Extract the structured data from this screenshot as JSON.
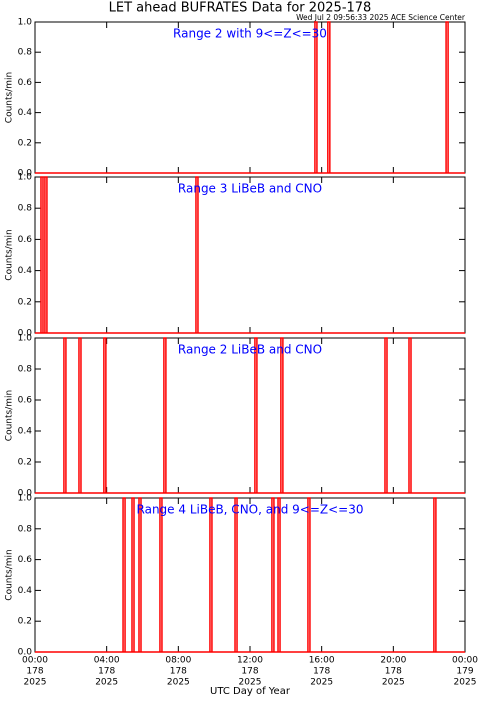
{
  "title": "LET ahead BUFRATES Data for 2025-178",
  "timestamp": "Wed Jul  2 09:56:33 2025 ACE Science Center",
  "x_axis": {
    "label": "UTC Day of Year",
    "xlim": [
      0,
      24
    ],
    "xticks": [
      {
        "value": 0,
        "label": "00:00"
      },
      {
        "value": 4,
        "label": "04:00"
      },
      {
        "value": 8,
        "label": "08:00"
      },
      {
        "value": 12,
        "label": "12:00"
      },
      {
        "value": 16,
        "label": "16:00"
      },
      {
        "value": 20,
        "label": "20:00"
      },
      {
        "value": 24,
        "label": "00:00"
      }
    ],
    "day_labels": [
      "178",
      "178",
      "178",
      "178",
      "178",
      "178",
      "179"
    ],
    "year_labels": [
      "2025",
      "2025",
      "2025",
      "2025",
      "2025",
      "2025",
      "2025"
    ]
  },
  "chart_data": [
    {
      "type": "line",
      "annotation": "Range 2 with 9<=Z<=30",
      "ylabel": "Counts/min",
      "color": "#ff0000",
      "ylim": [
        0,
        1
      ],
      "yticks": [
        {
          "value": 0,
          "label": "0.0"
        },
        {
          "value": 0.2,
          "label": "0.2"
        },
        {
          "value": 0.4,
          "label": "0.4"
        },
        {
          "value": 0.6,
          "label": "0.6"
        },
        {
          "value": 0.8,
          "label": "0.8"
        },
        {
          "value": 1,
          "label": "1.0"
        }
      ],
      "x": [
        15.68,
        16.4,
        23.0
      ],
      "values": [
        1,
        1,
        1
      ]
    },
    {
      "type": "line",
      "annotation": "Range 3 LiBeB and CNO",
      "ylabel": "Counts/min",
      "color": "#ff0000",
      "ylim": [
        0,
        1
      ],
      "yticks": [
        {
          "value": 0,
          "label": "0.0"
        },
        {
          "value": 0.2,
          "label": "0.2"
        },
        {
          "value": 0.4,
          "label": "0.4"
        },
        {
          "value": 0.6,
          "label": "0.6"
        },
        {
          "value": 0.8,
          "label": "0.8"
        },
        {
          "value": 1,
          "label": "1.0"
        }
      ],
      "x": [
        0.39,
        0.61,
        9.04
      ],
      "values": [
        1,
        1,
        1
      ]
    },
    {
      "type": "line",
      "annotation": "Range 2 LiBeB and CNO",
      "ylabel": "Counts/min",
      "color": "#ff0000",
      "ylim": [
        0,
        1
      ],
      "yticks": [
        {
          "value": 0,
          "label": "0.0"
        },
        {
          "value": 0.2,
          "label": "0.2"
        },
        {
          "value": 0.4,
          "label": "0.4"
        },
        {
          "value": 0.6,
          "label": "0.6"
        },
        {
          "value": 0.8,
          "label": "0.8"
        },
        {
          "value": 1,
          "label": "1.0"
        }
      ],
      "x": [
        1.67,
        2.51,
        3.9,
        7.25,
        12.33,
        13.78,
        19.59,
        20.93
      ],
      "values": [
        1,
        1,
        1,
        1,
        1,
        1,
        1,
        1
      ]
    },
    {
      "type": "line",
      "annotation": "Range 4 LiBeB, CNO, and 9<=Z<=30",
      "ylabel": "Counts/min",
      "color": "#ff0000",
      "ylim": [
        0,
        1
      ],
      "yticks": [
        {
          "value": 0,
          "label": "0.0"
        },
        {
          "value": 0.2,
          "label": "0.2"
        },
        {
          "value": 0.4,
          "label": "0.4"
        },
        {
          "value": 0.6,
          "label": "0.6"
        },
        {
          "value": 0.8,
          "label": "0.8"
        },
        {
          "value": 1,
          "label": "1.0"
        }
      ],
      "x": [
        4.97,
        5.47,
        5.86,
        7.03,
        9.82,
        11.22,
        13.28,
        13.62,
        15.29,
        22.32
      ],
      "values": [
        1,
        1,
        1,
        1,
        1,
        1,
        1,
        1,
        1,
        1
      ]
    }
  ]
}
